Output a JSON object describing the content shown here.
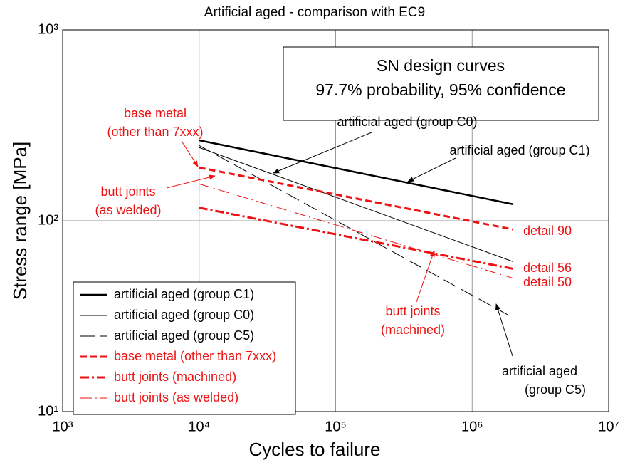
{
  "chart_data": {
    "type": "line",
    "title": "Artificial aged - comparison with EC9",
    "xlabel": "Cycles to failure",
    "ylabel": "Stress range [MPa]",
    "xscale": "log",
    "yscale": "log",
    "grid": true,
    "legend": "lower left",
    "xlim": [
      1000,
      10000000
    ],
    "xticks": [
      {
        "value": 1000,
        "label": "10³"
      },
      {
        "value": 10000,
        "label": "10⁴"
      },
      {
        "value": 100000,
        "label": "10⁵"
      },
      {
        "value": 1000000,
        "label": "10⁶"
      },
      {
        "value": 10000000,
        "label": "10⁷"
      }
    ],
    "ylim": [
      10,
      1000
    ],
    "yticks": [
      {
        "value": 10,
        "label": "10¹"
      },
      {
        "value": 100,
        "label": "10²"
      },
      {
        "value": 1000,
        "label": "10³"
      }
    ],
    "x": [
      10000,
      2000000
    ],
    "series": [
      {
        "name": "artificial aged (group C1)",
        "color": "#000000",
        "dash": "solid",
        "width": 2.5,
        "values": [
          264,
          122
        ]
      },
      {
        "name": "artificial aged (group C0)",
        "color": "#000000",
        "dash": "solid",
        "width": 1,
        "values": [
          242,
          61
        ]
      },
      {
        "name": "artificial aged (group C5)",
        "color": "#000000",
        "dash": "longdash",
        "width": 1,
        "values": [
          248,
          31
        ]
      },
      {
        "name": "base metal (other than 7xxx)",
        "color": "#ee1111",
        "dash": "dashed",
        "width": 3,
        "values": [
          190,
          90
        ]
      },
      {
        "name": "butt joints (machined)",
        "color": "#ee1111",
        "dash": "dashdot",
        "width": 3,
        "values": [
          117,
          56
        ]
      },
      {
        "name": "butt joints (as welded)",
        "color": "#ee1111",
        "dash": "dashdot",
        "width": 1,
        "values": [
          156,
          50
        ]
      }
    ],
    "textbox": [
      "SN design curves",
      "97.7% probability, 95% confidence"
    ],
    "annotations": [
      {
        "text": [
          "base metal",
          "(other than 7xxx)"
        ],
        "color": "#ee1111"
      },
      {
        "text": [
          "butt joints",
          "(as welded)"
        ],
        "color": "#ee1111"
      },
      {
        "text": [
          "artificial aged (group C0)"
        ],
        "color": "#000000"
      },
      {
        "text": [
          "artificial aged (group C1)"
        ],
        "color": "#000000"
      },
      {
        "text": [
          "detail 90"
        ],
        "color": "#ee1111"
      },
      {
        "text": [
          "detail 56"
        ],
        "color": "#ee1111"
      },
      {
        "text": [
          "detail 50"
        ],
        "color": "#ee1111"
      },
      {
        "text": [
          "butt joints",
          "(machined)"
        ],
        "color": "#ee1111"
      },
      {
        "text": [
          "artificial aged",
          "(group C5)"
        ],
        "color": "#000000"
      }
    ]
  }
}
